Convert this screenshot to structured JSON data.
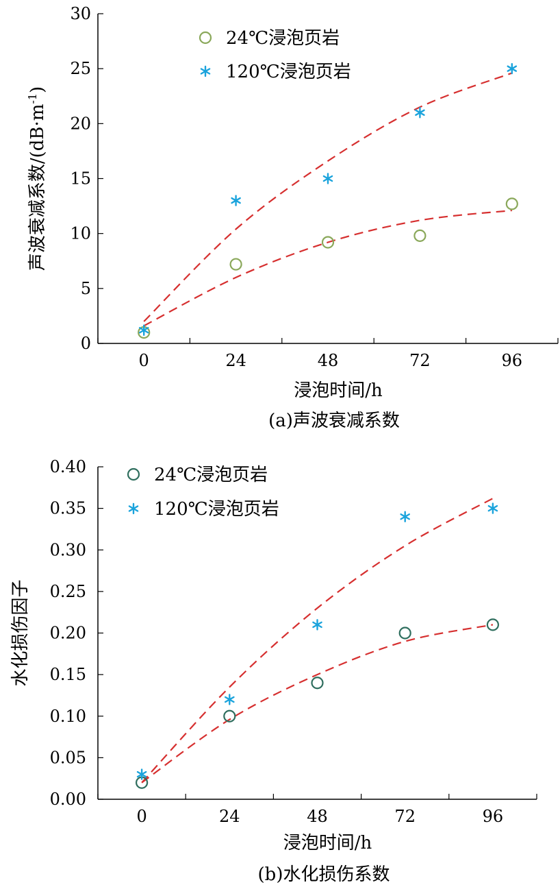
{
  "chart_data": [
    {
      "type": "scatter",
      "caption": "(a)声波衰减系数",
      "xlabel": "浸泡时间/h",
      "ylabel_parts": {
        "main": "声波衰减系数/(dB·m",
        "sup": "-1",
        "close": ")"
      },
      "x_ticks": [
        "0",
        "24",
        "48",
        "72",
        "96"
      ],
      "y_ticks": [
        "0",
        "5",
        "10",
        "15",
        "20",
        "25",
        "30"
      ],
      "xlim": [
        -12,
        108
      ],
      "ylim": [
        0,
        30
      ],
      "series": [
        {
          "name": "24℃浸泡页岩",
          "marker": "circle",
          "color": "#8aa85a",
          "x": [
            0,
            24,
            48,
            72,
            96
          ],
          "values": [
            1.0,
            7.2,
            9.2,
            9.8,
            12.7
          ],
          "fit": {
            "x": [
              0,
              24,
              48,
              72,
              96
            ],
            "y": [
              1.6,
              6.0,
              9.2,
              11.2,
              12.1
            ]
          }
        },
        {
          "name": "120℃浸泡页岩",
          "marker": "asterisk",
          "color": "#1aa3dc",
          "x": [
            0,
            24,
            48,
            72,
            96
          ],
          "values": [
            1.2,
            13.0,
            15.0,
            21.0,
            25.0
          ],
          "fit": {
            "x": [
              0,
              24,
              48,
              72,
              96
            ],
            "y": [
              2.0,
              10.4,
              16.6,
              21.5,
              24.6
            ]
          }
        }
      ],
      "fit_color": "#d62f2f",
      "legend": "top-left"
    },
    {
      "type": "scatter",
      "caption": "(b)水化损伤系数",
      "xlabel": "浸泡时间/h",
      "ylabel": "水化损伤因子",
      "x_ticks": [
        "0",
        "24",
        "48",
        "72",
        "96"
      ],
      "y_ticks": [
        "0.00",
        "0.05",
        "0.10",
        "0.15",
        "0.20",
        "0.25",
        "0.30",
        "0.35",
        "0.40"
      ],
      "xlim": [
        -12,
        108
      ],
      "ylim": [
        0,
        0.4
      ],
      "series": [
        {
          "name": "24℃浸泡页岩",
          "marker": "circle",
          "color": "#2f6e5e",
          "x": [
            0,
            24,
            48,
            72,
            96
          ],
          "values": [
            0.02,
            0.1,
            0.14,
            0.2,
            0.21
          ],
          "fit": {
            "x": [
              0,
              24,
              48,
              72,
              96
            ],
            "y": [
              0.02,
              0.096,
              0.15,
              0.19,
              0.21
            ]
          }
        },
        {
          "name": "120℃浸泡页岩",
          "marker": "asterisk",
          "color": "#1aa3dc",
          "x": [
            0,
            24,
            48,
            72,
            96
          ],
          "values": [
            0.03,
            0.12,
            0.21,
            0.34,
            0.35
          ],
          "fit": {
            "x": [
              0,
              24,
              48,
              72,
              96
            ],
            "y": [
              0.02,
              0.135,
              0.23,
              0.305,
              0.362
            ]
          }
        }
      ],
      "fit_color": "#d62f2f",
      "legend": "top-left"
    }
  ]
}
